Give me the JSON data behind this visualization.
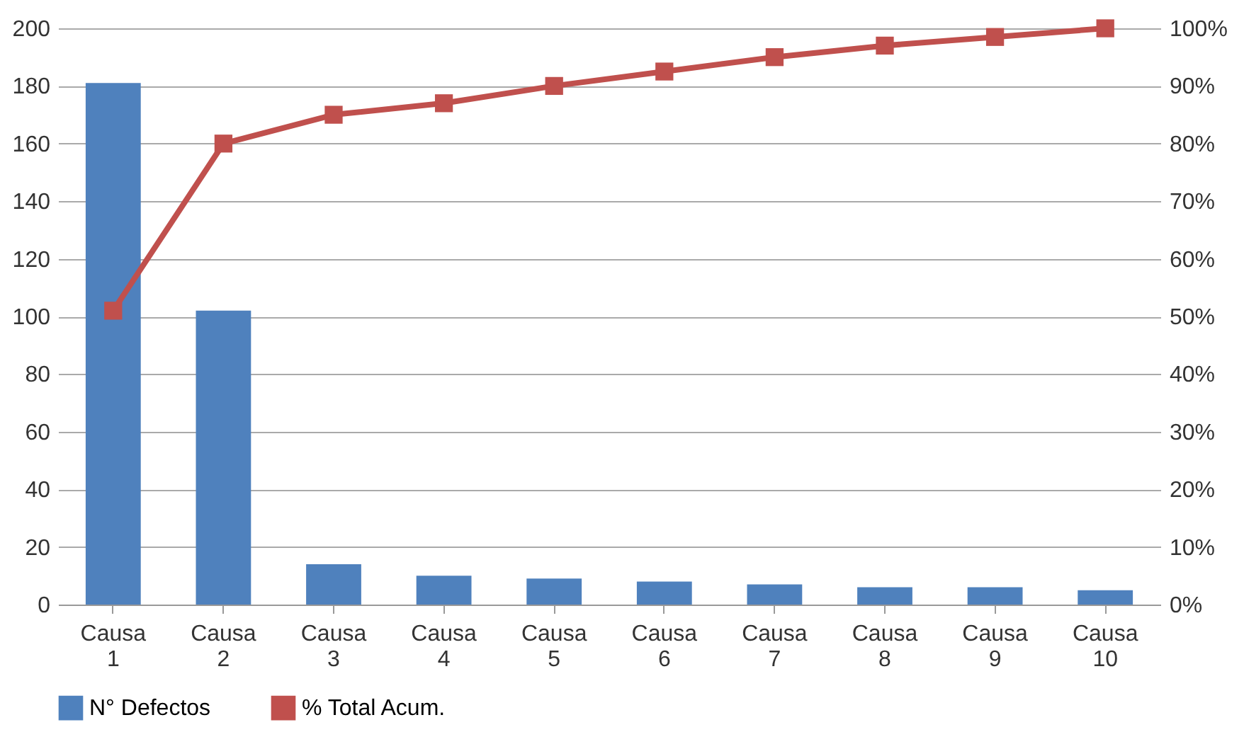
{
  "chart_data": {
    "type": "bar",
    "categories": [
      "Causa 1",
      "Causa 2",
      "Causa 3",
      "Causa 4",
      "Causa 5",
      "Causa 6",
      "Causa 7",
      "Causa 8",
      "Causa 9",
      "Causa 10"
    ],
    "series": [
      {
        "name": "N° Defectos",
        "color": "#4f81bd",
        "values": [
          181,
          102,
          14,
          10,
          9,
          8,
          7,
          6,
          6,
          5
        ]
      },
      {
        "name": "% Total Acum.",
        "type": "line",
        "axis": "y2",
        "color": "#c0504d",
        "marker": "square",
        "values": [
          51,
          80,
          85,
          87,
          90,
          92.5,
          95,
          97,
          98.5,
          100
        ]
      }
    ],
    "ylim": [
      0,
      200
    ],
    "yticks": [
      0,
      20,
      40,
      60,
      80,
      100,
      120,
      140,
      160,
      180,
      200
    ],
    "y2lim": [
      0,
      100
    ],
    "y2ticks": [
      {
        "value": 0,
        "label": "0%"
      },
      {
        "value": 10,
        "label": "10%"
      },
      {
        "value": 20,
        "label": "20%"
      },
      {
        "value": 30,
        "label": "30%"
      },
      {
        "value": 40,
        "label": "40%"
      },
      {
        "value": 50,
        "label": "50%"
      },
      {
        "value": 60,
        "label": "60%"
      },
      {
        "value": 70,
        "label": "70%"
      },
      {
        "value": 80,
        "label": "80%"
      },
      {
        "value": 90,
        "label": "90%"
      },
      {
        "value": 100,
        "label": "100%"
      }
    ],
    "grid": "y",
    "legend": "bottom"
  }
}
